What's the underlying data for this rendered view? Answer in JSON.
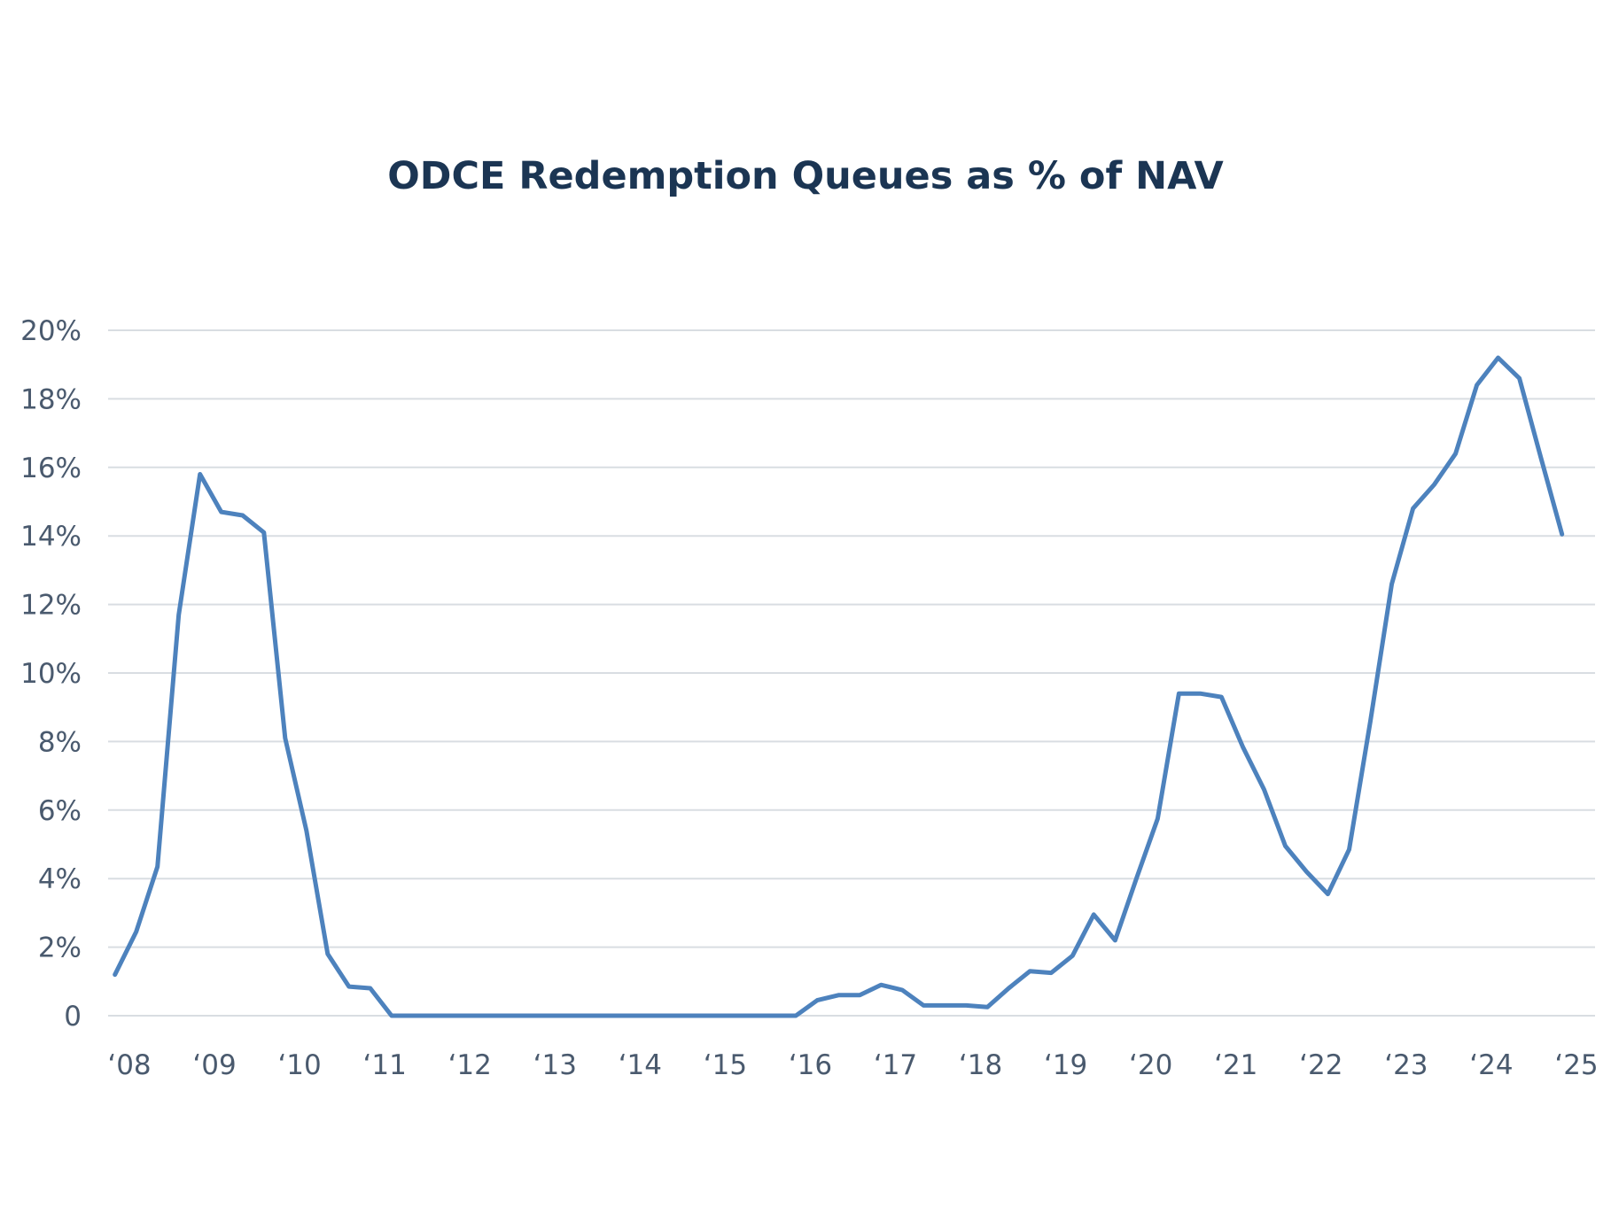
{
  "colors": {
    "title": "#1b3553",
    "tick_text": "#4a5a6e",
    "grid": "#d9dde2",
    "series": "#4d82bd"
  },
  "chart_data": {
    "type": "line",
    "title": "ODCE Redemption Queues as % of NAV",
    "xlabel": "",
    "ylabel": "",
    "ylim": [
      0,
      20
    ],
    "xlim": [
      2008.0,
      2025.25
    ],
    "grid": true,
    "legend": "none",
    "y_ticks": [
      {
        "value": 0,
        "label": "0"
      },
      {
        "value": 2,
        "label": "2%"
      },
      {
        "value": 4,
        "label": "4%"
      },
      {
        "value": 6,
        "label": "6%"
      },
      {
        "value": 8,
        "label": "8%"
      },
      {
        "value": 10,
        "label": "10%"
      },
      {
        "value": 12,
        "label": "12%"
      },
      {
        "value": 14,
        "label": "14%"
      },
      {
        "value": 16,
        "label": "16%"
      },
      {
        "value": 18,
        "label": "18%"
      },
      {
        "value": 20,
        "label": "20%"
      }
    ],
    "x_ticks": [
      {
        "value": 2008,
        "label": "‘08"
      },
      {
        "value": 2009,
        "label": "‘09"
      },
      {
        "value": 2010,
        "label": "‘10"
      },
      {
        "value": 2011,
        "label": "‘11"
      },
      {
        "value": 2012,
        "label": "‘12"
      },
      {
        "value": 2013,
        "label": "‘13"
      },
      {
        "value": 2014,
        "label": "‘14"
      },
      {
        "value": 2015,
        "label": "‘15"
      },
      {
        "value": 2016,
        "label": "‘16"
      },
      {
        "value": 2017,
        "label": "‘17"
      },
      {
        "value": 2018,
        "label": "‘18"
      },
      {
        "value": 2019,
        "label": "‘19"
      },
      {
        "value": 2020,
        "label": "‘20"
      },
      {
        "value": 2021,
        "label": "‘21"
      },
      {
        "value": 2022,
        "label": "‘22"
      },
      {
        "value": 2023,
        "label": "‘23"
      },
      {
        "value": 2024,
        "label": "‘24"
      },
      {
        "value": 2025,
        "label": "‘25"
      }
    ],
    "series": [
      {
        "points": [
          [
            2007.83,
            1.2
          ],
          [
            2008.08,
            2.45
          ],
          [
            2008.33,
            4.35
          ],
          [
            2008.58,
            11.7
          ],
          [
            2008.83,
            15.8
          ],
          [
            2009.08,
            14.7
          ],
          [
            2009.33,
            14.6
          ],
          [
            2009.58,
            14.1
          ],
          [
            2009.83,
            8.1
          ],
          [
            2010.08,
            5.4
          ],
          [
            2010.33,
            1.8
          ],
          [
            2010.58,
            0.85
          ],
          [
            2010.83,
            0.8
          ],
          [
            2011.08,
            0.0
          ],
          [
            2011.33,
            0.0
          ],
          [
            2011.58,
            0.0
          ],
          [
            2011.83,
            0.0
          ],
          [
            2012.08,
            0.0
          ],
          [
            2012.33,
            0.0
          ],
          [
            2012.58,
            0.0
          ],
          [
            2012.83,
            0.0
          ],
          [
            2013.08,
            0.0
          ],
          [
            2013.33,
            0.0
          ],
          [
            2013.58,
            0.0
          ],
          [
            2013.83,
            0.0
          ],
          [
            2014.08,
            0.0
          ],
          [
            2014.33,
            0.0
          ],
          [
            2014.58,
            0.0
          ],
          [
            2014.83,
            0.0
          ],
          [
            2015.08,
            0.0
          ],
          [
            2015.33,
            0.0
          ],
          [
            2015.58,
            0.0
          ],
          [
            2015.83,
            0.0
          ],
          [
            2016.08,
            0.45
          ],
          [
            2016.33,
            0.6
          ],
          [
            2016.58,
            0.6
          ],
          [
            2016.83,
            0.9
          ],
          [
            2017.08,
            0.75
          ],
          [
            2017.33,
            0.3
          ],
          [
            2017.58,
            0.3
          ],
          [
            2017.83,
            0.3
          ],
          [
            2018.08,
            0.25
          ],
          [
            2018.33,
            0.8
          ],
          [
            2018.58,
            1.3
          ],
          [
            2018.83,
            1.25
          ],
          [
            2019.08,
            1.75
          ],
          [
            2019.33,
            2.95
          ],
          [
            2019.58,
            2.2
          ],
          [
            2019.83,
            4.0
          ],
          [
            2020.08,
            5.75
          ],
          [
            2020.33,
            9.4
          ],
          [
            2020.58,
            9.4
          ],
          [
            2020.83,
            9.3
          ],
          [
            2021.08,
            7.85
          ],
          [
            2021.33,
            6.6
          ],
          [
            2021.58,
            4.95
          ],
          [
            2021.83,
            4.2
          ],
          [
            2022.08,
            3.55
          ],
          [
            2022.33,
            4.85
          ],
          [
            2022.58,
            8.6
          ],
          [
            2022.83,
            12.6
          ],
          [
            2023.08,
            14.8
          ],
          [
            2023.33,
            15.5
          ],
          [
            2023.58,
            16.4
          ],
          [
            2023.83,
            18.4
          ],
          [
            2024.08,
            19.2
          ],
          [
            2024.33,
            18.6
          ],
          [
            2024.58,
            16.3
          ],
          [
            2024.83,
            14.05
          ]
        ]
      }
    ]
  }
}
